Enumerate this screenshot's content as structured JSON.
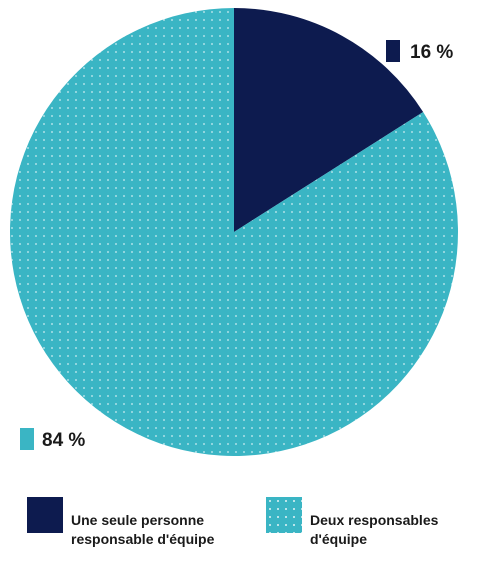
{
  "chart_data": {
    "type": "pie",
    "categories": [
      "Une seule personne responsable d'équipe",
      "Deux responsables d'équipe"
    ],
    "values": [
      16,
      84
    ],
    "value_labels": [
      "16 %",
      "84 %"
    ],
    "colors": [
      "#0d1b4f",
      "#3ab5c4"
    ],
    "patterns": [
      "solid",
      "dotted"
    ],
    "start_angle_deg": 0,
    "direction": "clockwise",
    "legend": {
      "placement": "bottom",
      "items": [
        {
          "label": "Une seule personne responsable d'équipe",
          "color": "#0d1b4f"
        },
        {
          "label": "Deux responsables d'équipe",
          "color": "#3ab5c4"
        }
      ]
    }
  }
}
